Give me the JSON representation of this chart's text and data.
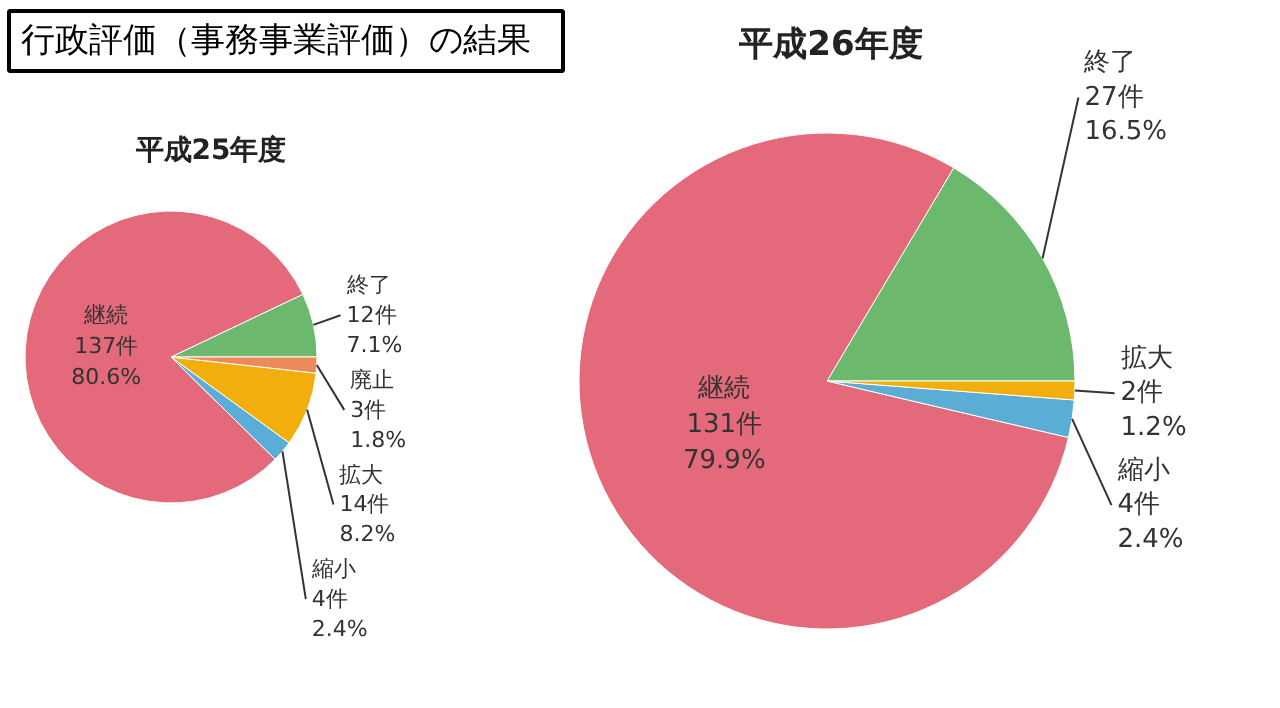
{
  "chart_data": [
    {
      "type": "pie",
      "title": "平成25年度",
      "annotations": [
        "行政評価（事務事業評価）の結果"
      ],
      "categories": [
        "終了",
        "継続",
        "縮小",
        "拡大",
        "廃止"
      ],
      "values": [
        12,
        137,
        4,
        14,
        3
      ],
      "colors": [
        "#6cb86c",
        "#e4697b",
        "#5aaed6",
        "#f2ae0c",
        "#ec8a5a"
      ],
      "value_labels": [
        "12件\n7.1%",
        "137件\n80.6%",
        "4件\n2.4%",
        "14件\n8.2%",
        "3件\n1.8%"
      ]
    },
    {
      "type": "pie",
      "title": "平成26年度",
      "categories": [
        "終了",
        "継続",
        "縮小",
        "拡大"
      ],
      "values": [
        27,
        131,
        4,
        2
      ],
      "colors": [
        "#6cb86c",
        "#e4697b",
        "#5aaed6",
        "#f2ae0c"
      ],
      "value_labels": [
        "27件\n16.5%",
        "131件\n79.9%",
        "4件\n2.4%",
        "2件\n1.2%"
      ]
    }
  ]
}
